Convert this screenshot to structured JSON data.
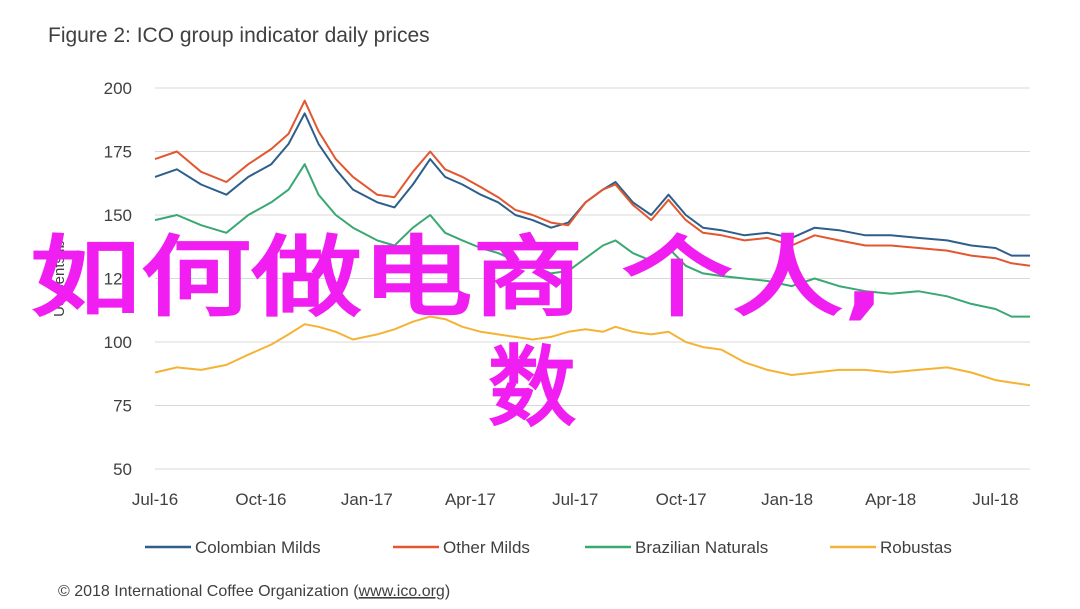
{
  "title": "Figure 2: ICO group indicator daily prices",
  "footer": {
    "prefix": "© 2018 International Coffee Organization (",
    "link": "www.ico.org",
    "suffix": ")"
  },
  "watermark": {
    "line1": "如何做电商 个人,",
    "line2": "数"
  },
  "chart_data": {
    "type": "line",
    "ylabel": "US cents/lb",
    "ylim": [
      50,
      200
    ],
    "yticks": [
      50,
      75,
      100,
      125,
      150,
      175,
      200
    ],
    "xlim": [
      "2016-07-01",
      "2018-07-31"
    ],
    "xticks": [
      {
        "date": "2016-07-01",
        "label": "Jul-16"
      },
      {
        "date": "2016-10-01",
        "label": "Oct-16"
      },
      {
        "date": "2017-01-01",
        "label": "Jan-17"
      },
      {
        "date": "2017-04-01",
        "label": "Apr-17"
      },
      {
        "date": "2017-07-01",
        "label": "Jul-17"
      },
      {
        "date": "2017-10-01",
        "label": "Oct-17"
      },
      {
        "date": "2018-01-01",
        "label": "Jan-18"
      },
      {
        "date": "2018-04-01",
        "label": "Apr-18"
      },
      {
        "date": "2018-07-01",
        "label": "Jul-18"
      }
    ],
    "grid": true,
    "legend_position": "bottom",
    "series": [
      {
        "name": "Colombian Milds",
        "color": "#2e5f8a",
        "points": [
          [
            "2016-07-01",
            165
          ],
          [
            "2016-07-20",
            168
          ],
          [
            "2016-08-10",
            162
          ],
          [
            "2016-09-01",
            158
          ],
          [
            "2016-09-20",
            165
          ],
          [
            "2016-10-10",
            170
          ],
          [
            "2016-10-25",
            178
          ],
          [
            "2016-11-08",
            190
          ],
          [
            "2016-11-20",
            178
          ],
          [
            "2016-12-05",
            168
          ],
          [
            "2016-12-20",
            160
          ],
          [
            "2017-01-10",
            155
          ],
          [
            "2017-01-25",
            153
          ],
          [
            "2017-02-10",
            162
          ],
          [
            "2017-02-25",
            172
          ],
          [
            "2017-03-10",
            165
          ],
          [
            "2017-03-25",
            162
          ],
          [
            "2017-04-10",
            158
          ],
          [
            "2017-04-25",
            155
          ],
          [
            "2017-05-10",
            150
          ],
          [
            "2017-05-25",
            148
          ],
          [
            "2017-06-10",
            145
          ],
          [
            "2017-06-25",
            147
          ],
          [
            "2017-07-10",
            155
          ],
          [
            "2017-07-25",
            160
          ],
          [
            "2017-08-05",
            163
          ],
          [
            "2017-08-20",
            155
          ],
          [
            "2017-09-05",
            150
          ],
          [
            "2017-09-20",
            158
          ],
          [
            "2017-10-05",
            150
          ],
          [
            "2017-10-20",
            145
          ],
          [
            "2017-11-05",
            144
          ],
          [
            "2017-11-25",
            142
          ],
          [
            "2017-12-15",
            143
          ],
          [
            "2018-01-05",
            141
          ],
          [
            "2018-01-25",
            145
          ],
          [
            "2018-02-15",
            144
          ],
          [
            "2018-03-10",
            142
          ],
          [
            "2018-04-01",
            142
          ],
          [
            "2018-04-25",
            141
          ],
          [
            "2018-05-20",
            140
          ],
          [
            "2018-06-10",
            138
          ],
          [
            "2018-07-01",
            137
          ],
          [
            "2018-07-15",
            134
          ],
          [
            "2018-07-31",
            134
          ]
        ]
      },
      {
        "name": "Other Milds",
        "color": "#e2572f",
        "points": [
          [
            "2016-07-01",
            172
          ],
          [
            "2016-07-20",
            175
          ],
          [
            "2016-08-10",
            167
          ],
          [
            "2016-09-01",
            163
          ],
          [
            "2016-09-20",
            170
          ],
          [
            "2016-10-10",
            176
          ],
          [
            "2016-10-25",
            182
          ],
          [
            "2016-11-08",
            195
          ],
          [
            "2016-11-20",
            183
          ],
          [
            "2016-12-05",
            172
          ],
          [
            "2016-12-20",
            165
          ],
          [
            "2017-01-10",
            158
          ],
          [
            "2017-01-25",
            157
          ],
          [
            "2017-02-10",
            167
          ],
          [
            "2017-02-25",
            175
          ],
          [
            "2017-03-10",
            168
          ],
          [
            "2017-03-25",
            165
          ],
          [
            "2017-04-10",
            161
          ],
          [
            "2017-04-25",
            157
          ],
          [
            "2017-05-10",
            152
          ],
          [
            "2017-05-25",
            150
          ],
          [
            "2017-06-10",
            147
          ],
          [
            "2017-06-25",
            146
          ],
          [
            "2017-07-10",
            155
          ],
          [
            "2017-07-25",
            160
          ],
          [
            "2017-08-05",
            162
          ],
          [
            "2017-08-20",
            154
          ],
          [
            "2017-09-05",
            148
          ],
          [
            "2017-09-20",
            156
          ],
          [
            "2017-10-05",
            148
          ],
          [
            "2017-10-20",
            143
          ],
          [
            "2017-11-05",
            142
          ],
          [
            "2017-11-25",
            140
          ],
          [
            "2017-12-15",
            141
          ],
          [
            "2018-01-05",
            138
          ],
          [
            "2018-01-25",
            142
          ],
          [
            "2018-02-15",
            140
          ],
          [
            "2018-03-10",
            138
          ],
          [
            "2018-04-01",
            138
          ],
          [
            "2018-04-25",
            137
          ],
          [
            "2018-05-20",
            136
          ],
          [
            "2018-06-10",
            134
          ],
          [
            "2018-07-01",
            133
          ],
          [
            "2018-07-15",
            131
          ],
          [
            "2018-07-31",
            130
          ]
        ]
      },
      {
        "name": "Brazilian Naturals",
        "color": "#3aa872",
        "points": [
          [
            "2016-07-01",
            148
          ],
          [
            "2016-07-20",
            150
          ],
          [
            "2016-08-10",
            146
          ],
          [
            "2016-09-01",
            143
          ],
          [
            "2016-09-20",
            150
          ],
          [
            "2016-10-10",
            155
          ],
          [
            "2016-10-25",
            160
          ],
          [
            "2016-11-08",
            170
          ],
          [
            "2016-11-20",
            158
          ],
          [
            "2016-12-05",
            150
          ],
          [
            "2016-12-20",
            145
          ],
          [
            "2017-01-10",
            140
          ],
          [
            "2017-01-25",
            138
          ],
          [
            "2017-02-10",
            145
          ],
          [
            "2017-02-25",
            150
          ],
          [
            "2017-03-10",
            143
          ],
          [
            "2017-03-25",
            140
          ],
          [
            "2017-04-10",
            137
          ],
          [
            "2017-04-25",
            135
          ],
          [
            "2017-05-10",
            132
          ],
          [
            "2017-05-25",
            130
          ],
          [
            "2017-06-10",
            127
          ],
          [
            "2017-06-25",
            128
          ],
          [
            "2017-07-10",
            133
          ],
          [
            "2017-07-25",
            138
          ],
          [
            "2017-08-05",
            140
          ],
          [
            "2017-08-20",
            135
          ],
          [
            "2017-09-05",
            132
          ],
          [
            "2017-09-20",
            137
          ],
          [
            "2017-10-05",
            130
          ],
          [
            "2017-10-20",
            127
          ],
          [
            "2017-11-05",
            126
          ],
          [
            "2017-11-25",
            125
          ],
          [
            "2017-12-15",
            124
          ],
          [
            "2018-01-05",
            122
          ],
          [
            "2018-01-25",
            125
          ],
          [
            "2018-02-15",
            122
          ],
          [
            "2018-03-10",
            120
          ],
          [
            "2018-04-01",
            119
          ],
          [
            "2018-04-25",
            120
          ],
          [
            "2018-05-20",
            118
          ],
          [
            "2018-06-10",
            115
          ],
          [
            "2018-07-01",
            113
          ],
          [
            "2018-07-15",
            110
          ],
          [
            "2018-07-31",
            110
          ]
        ]
      },
      {
        "name": "Robustas",
        "color": "#f5b335",
        "points": [
          [
            "2016-07-01",
            88
          ],
          [
            "2016-07-20",
            90
          ],
          [
            "2016-08-10",
            89
          ],
          [
            "2016-09-01",
            91
          ],
          [
            "2016-09-20",
            95
          ],
          [
            "2016-10-10",
            99
          ],
          [
            "2016-10-25",
            103
          ],
          [
            "2016-11-08",
            107
          ],
          [
            "2016-11-20",
            106
          ],
          [
            "2016-12-05",
            104
          ],
          [
            "2016-12-20",
            101
          ],
          [
            "2017-01-10",
            103
          ],
          [
            "2017-01-25",
            105
          ],
          [
            "2017-02-10",
            108
          ],
          [
            "2017-02-25",
            110
          ],
          [
            "2017-03-10",
            109
          ],
          [
            "2017-03-25",
            106
          ],
          [
            "2017-04-10",
            104
          ],
          [
            "2017-04-25",
            103
          ],
          [
            "2017-05-10",
            102
          ],
          [
            "2017-05-25",
            101
          ],
          [
            "2017-06-10",
            102
          ],
          [
            "2017-06-25",
            104
          ],
          [
            "2017-07-10",
            105
          ],
          [
            "2017-07-25",
            104
          ],
          [
            "2017-08-05",
            106
          ],
          [
            "2017-08-20",
            104
          ],
          [
            "2017-09-05",
            103
          ],
          [
            "2017-09-20",
            104
          ],
          [
            "2017-10-05",
            100
          ],
          [
            "2017-10-20",
            98
          ],
          [
            "2017-11-05",
            97
          ],
          [
            "2017-11-25",
            92
          ],
          [
            "2017-12-15",
            89
          ],
          [
            "2018-01-05",
            87
          ],
          [
            "2018-01-25",
            88
          ],
          [
            "2018-02-15",
            89
          ],
          [
            "2018-03-10",
            89
          ],
          [
            "2018-04-01",
            88
          ],
          [
            "2018-04-25",
            89
          ],
          [
            "2018-05-20",
            90
          ],
          [
            "2018-06-10",
            88
          ],
          [
            "2018-07-01",
            85
          ],
          [
            "2018-07-15",
            84
          ],
          [
            "2018-07-31",
            83
          ]
        ]
      }
    ]
  }
}
